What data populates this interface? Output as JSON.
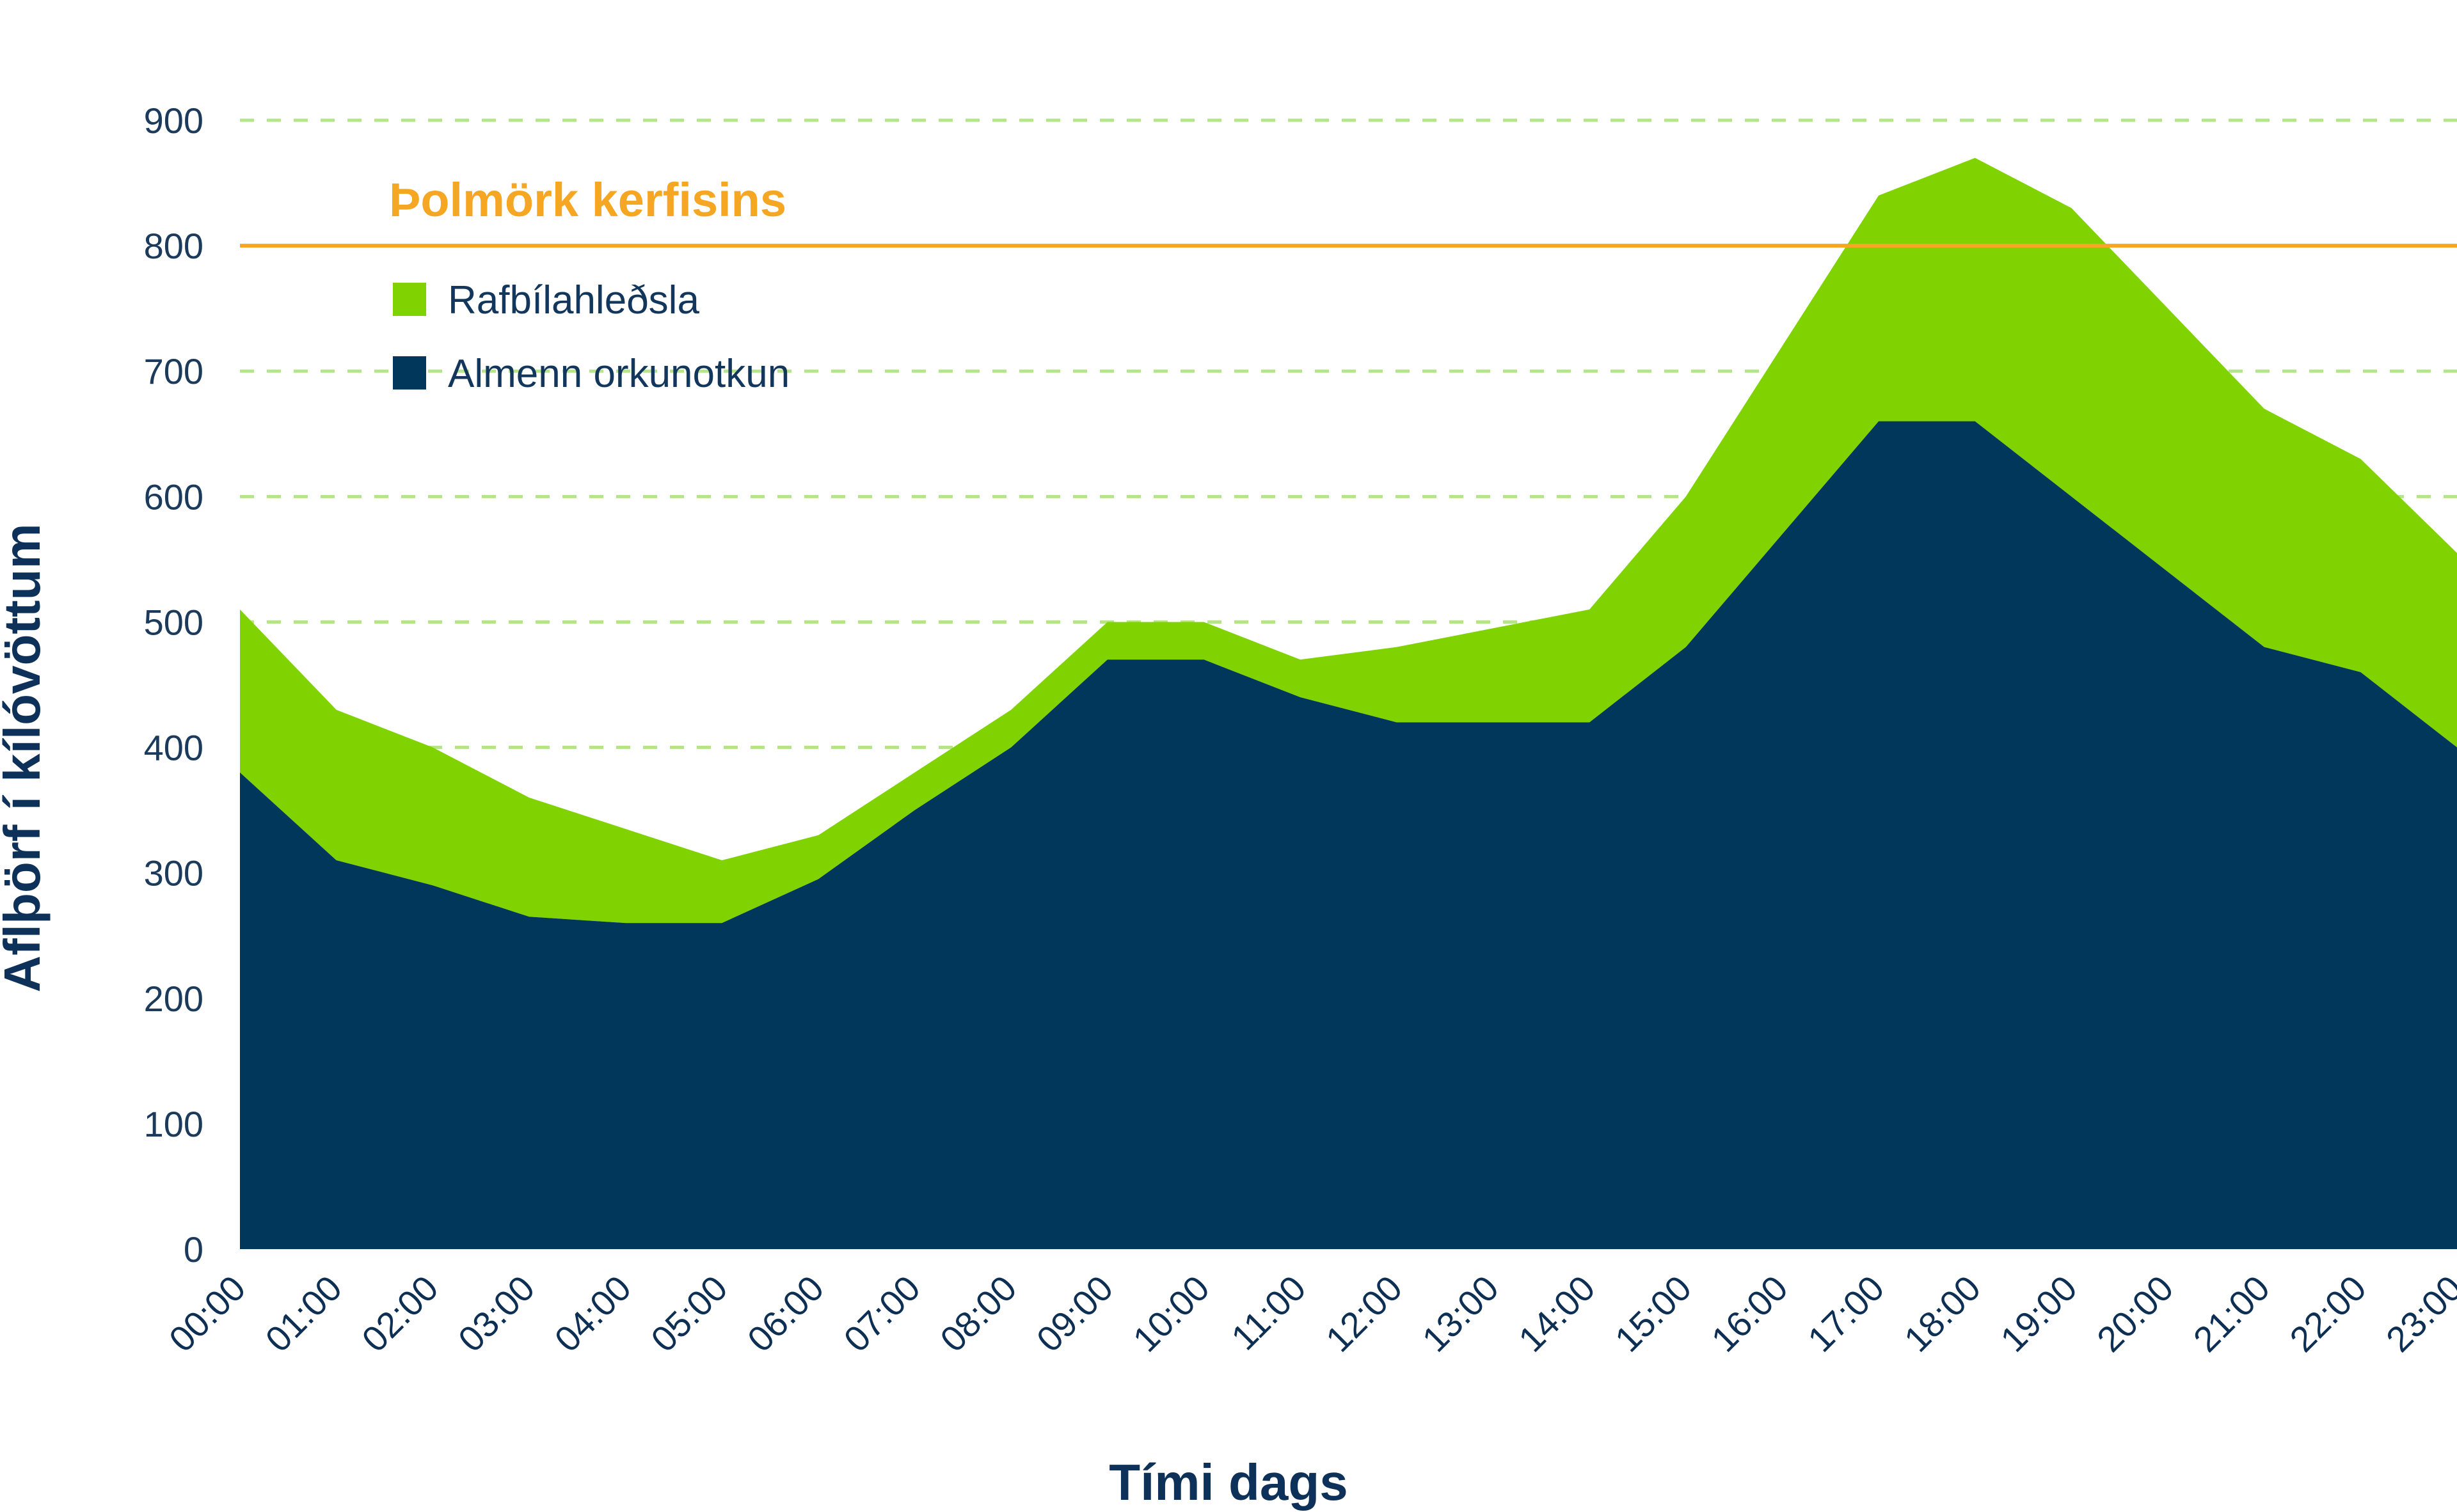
{
  "chart_data": {
    "type": "area",
    "stacked": true,
    "categories": [
      "00:00",
      "01:00",
      "02:00",
      "03:00",
      "04:00",
      "05:00",
      "06:00",
      "07:00",
      "08:00",
      "09:00",
      "10:00",
      "11:00",
      "12:00",
      "13:00",
      "14:00",
      "15:00",
      "16:00",
      "17:00",
      "18:00",
      "19:00",
      "20:00",
      "21:00",
      "22:00",
      "23:00"
    ],
    "series": [
      {
        "name": "Almenn orkunotkun",
        "color": "#02375c",
        "values": [
          380,
          310,
          290,
          265,
          260,
          260,
          295,
          350,
          400,
          470,
          470,
          440,
          420,
          420,
          420,
          480,
          570,
          660,
          660,
          600,
          540,
          480,
          460,
          400
        ]
      },
      {
        "name": "Rafbílahleðsla",
        "color": "#80d300",
        "values": [
          130,
          120,
          110,
          95,
          75,
          50,
          35,
          30,
          30,
          30,
          30,
          30,
          60,
          75,
          90,
          120,
          150,
          180,
          210,
          230,
          210,
          190,
          170,
          155
        ]
      }
    ],
    "threshold": {
      "label": "Þolmörk kerfisins",
      "value": 800,
      "color": "#f5a623"
    },
    "xlabel": "Tími dags",
    "ylabel": "Aflþörf í kílóvöttum",
    "ylim": [
      0,
      900
    ],
    "yticks": [
      0,
      100,
      200,
      300,
      400,
      500,
      600,
      700,
      800,
      900
    ],
    "grid": "horizontal dashed",
    "grid_color": "#b5e58a",
    "legend": "top-left"
  }
}
